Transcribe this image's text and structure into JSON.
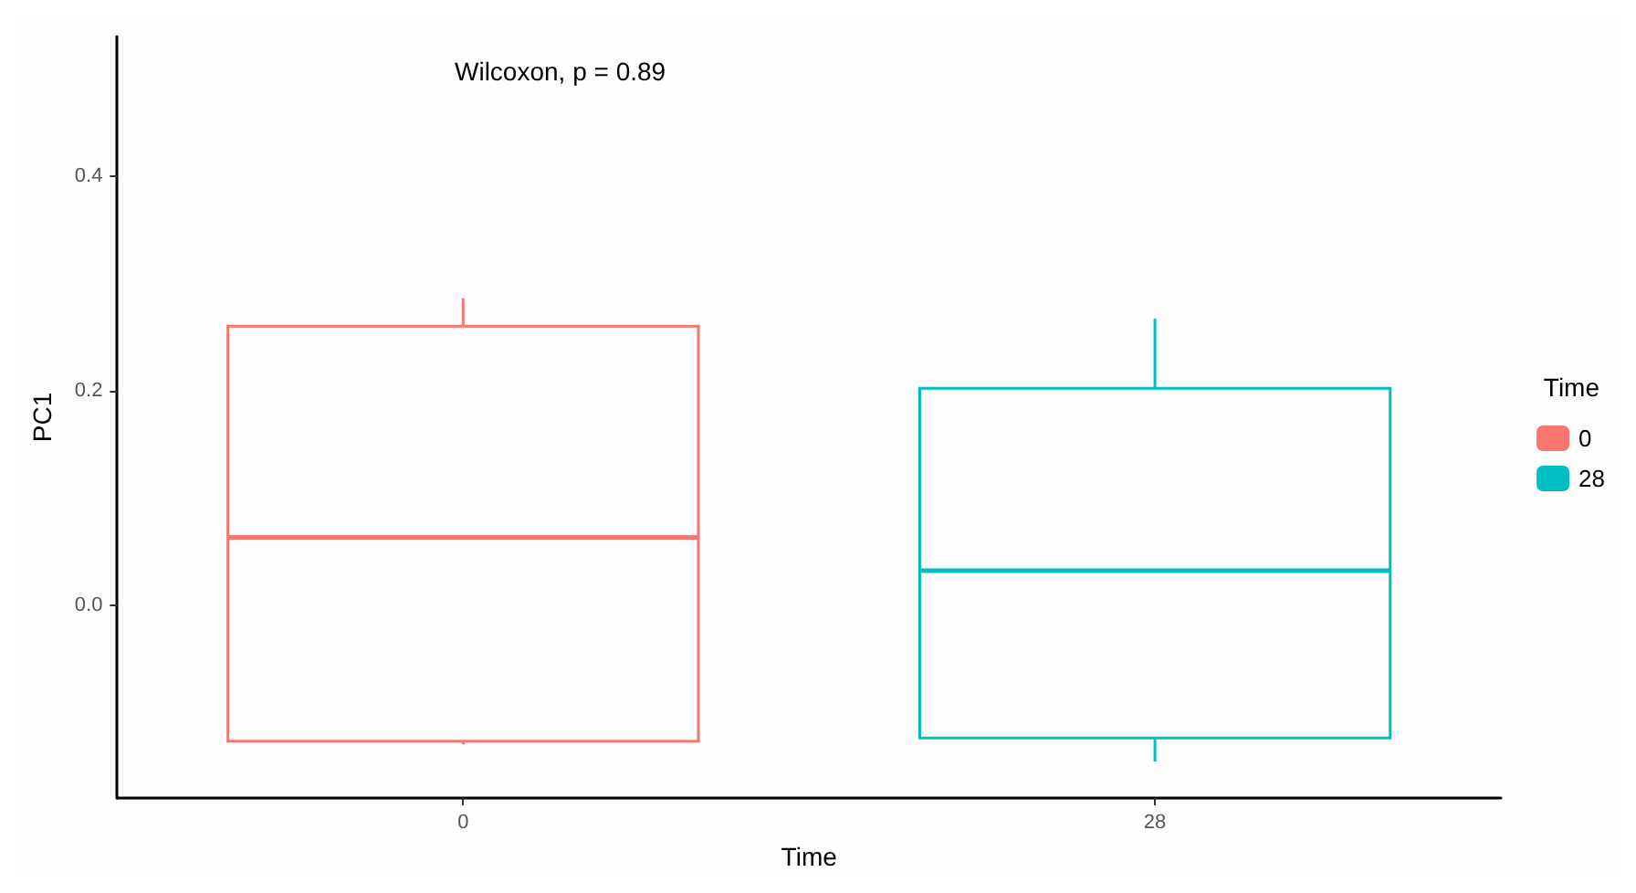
{
  "chart_data": {
    "type": "box",
    "xlabel": "Time",
    "ylabel": "PC1",
    "legend_title": "Time",
    "legend": "right",
    "grid": false,
    "categories": [
      "0",
      "28"
    ],
    "ylim": [
      -0.18,
      0.53
    ],
    "yticks": [
      {
        "value": 0,
        "label": "0.0"
      },
      0.2,
      0.4
    ],
    "annotations": [
      "Wilcoxon, p = 0.89"
    ],
    "series": [
      {
        "name": "0",
        "color": "#f8766d",
        "boxes": [
          {
            "low": -0.13,
            "q1": -0.127,
            "median": 0.063,
            "q3": 0.26,
            "high": 0.286
          },
          null
        ]
      },
      {
        "name": "28",
        "color": "#00bfc4",
        "boxes": [
          null,
          {
            "low": -0.146,
            "q1": -0.124,
            "median": 0.032,
            "q3": 0.202,
            "high": 0.267
          }
        ]
      }
    ]
  }
}
